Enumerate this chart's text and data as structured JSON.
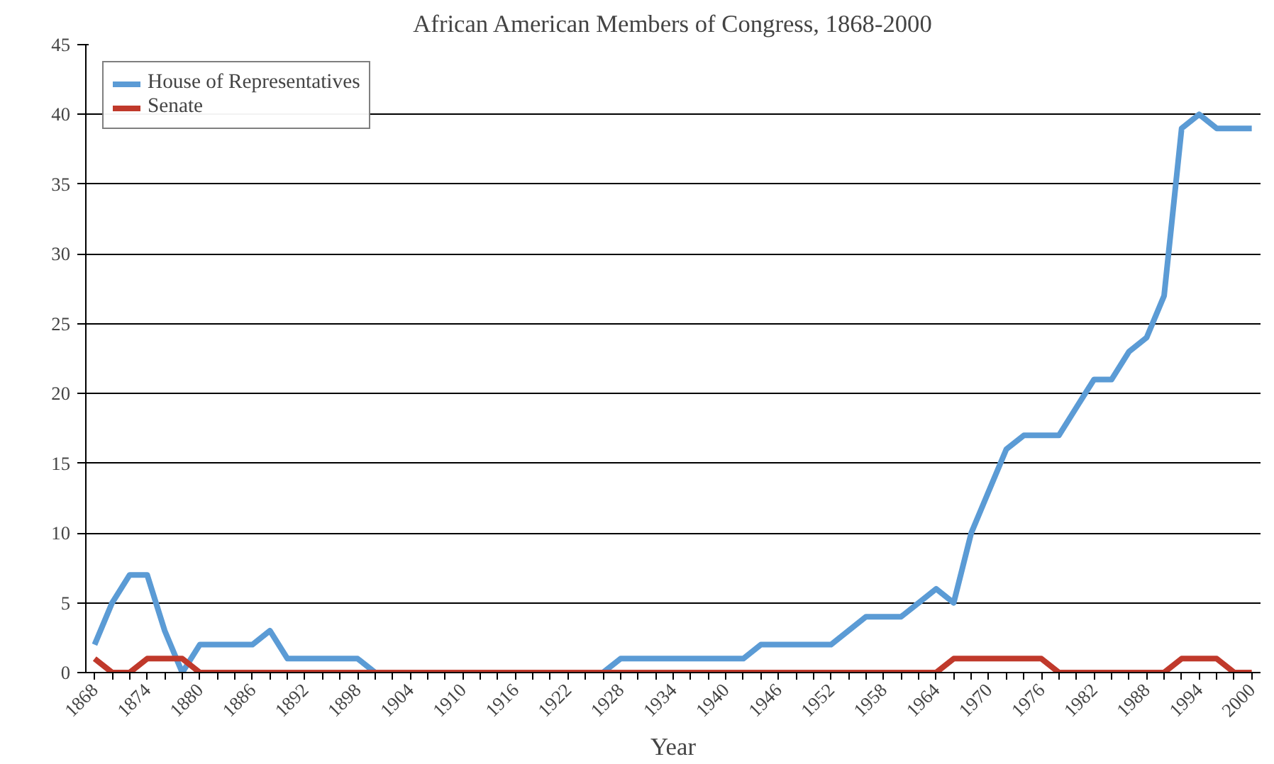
{
  "chart_data": {
    "type": "line",
    "title": "African American Members of Congress, 1868-2000",
    "xlabel": "Year",
    "x": [
      1868,
      1870,
      1872,
      1874,
      1876,
      1878,
      1880,
      1882,
      1884,
      1886,
      1888,
      1890,
      1892,
      1894,
      1896,
      1898,
      1900,
      1902,
      1904,
      1906,
      1908,
      1910,
      1912,
      1914,
      1916,
      1918,
      1920,
      1922,
      1924,
      1926,
      1928,
      1930,
      1932,
      1934,
      1936,
      1938,
      1940,
      1942,
      1944,
      1946,
      1948,
      1950,
      1952,
      1954,
      1956,
      1958,
      1960,
      1962,
      1964,
      1966,
      1968,
      1970,
      1972,
      1974,
      1976,
      1978,
      1980,
      1982,
      1984,
      1986,
      1988,
      1990,
      1992,
      1994,
      1996,
      1998,
      2000
    ],
    "series": [
      {
        "name": "House of Representatives",
        "color": "#5b9bd5",
        "values": [
          2,
          5,
          7,
          7,
          3,
          0,
          2,
          2,
          2,
          2,
          3,
          1,
          1,
          1,
          1,
          1,
          0,
          0,
          0,
          0,
          0,
          0,
          0,
          0,
          0,
          0,
          0,
          0,
          0,
          0,
          1,
          1,
          1,
          1,
          1,
          1,
          1,
          1,
          2,
          2,
          2,
          2,
          2,
          3,
          4,
          4,
          4,
          5,
          6,
          5,
          10,
          13,
          16,
          17,
          17,
          17,
          19,
          21,
          21,
          23,
          24,
          27,
          39,
          40,
          39,
          39,
          39
        ]
      },
      {
        "name": "Senate",
        "color": "#c0392b",
        "values": [
          1,
          0,
          0,
          1,
          1,
          1,
          0,
          0,
          0,
          0,
          0,
          0,
          0,
          0,
          0,
          0,
          0,
          0,
          0,
          0,
          0,
          0,
          0,
          0,
          0,
          0,
          0,
          0,
          0,
          0,
          0,
          0,
          0,
          0,
          0,
          0,
          0,
          0,
          0,
          0,
          0,
          0,
          0,
          0,
          0,
          0,
          0,
          0,
          0,
          1,
          1,
          1,
          1,
          1,
          1,
          0,
          0,
          0,
          0,
          0,
          0,
          0,
          1,
          1,
          1,
          0,
          0
        ]
      }
    ],
    "xlim": [
      1867,
      2001
    ],
    "xticks": [
      1868,
      1874,
      1880,
      1886,
      1892,
      1898,
      1904,
      1910,
      1916,
      1922,
      1928,
      1934,
      1940,
      1946,
      1952,
      1958,
      1964,
      1970,
      1976,
      1982,
      1988,
      1994,
      2000
    ],
    "ylim": [
      0,
      45
    ],
    "yticks": [
      0,
      5,
      10,
      15,
      20,
      25,
      30,
      35,
      40,
      45
    ],
    "grid": "y",
    "legend": "top left",
    "marker": "none",
    "line_style": "solid"
  }
}
